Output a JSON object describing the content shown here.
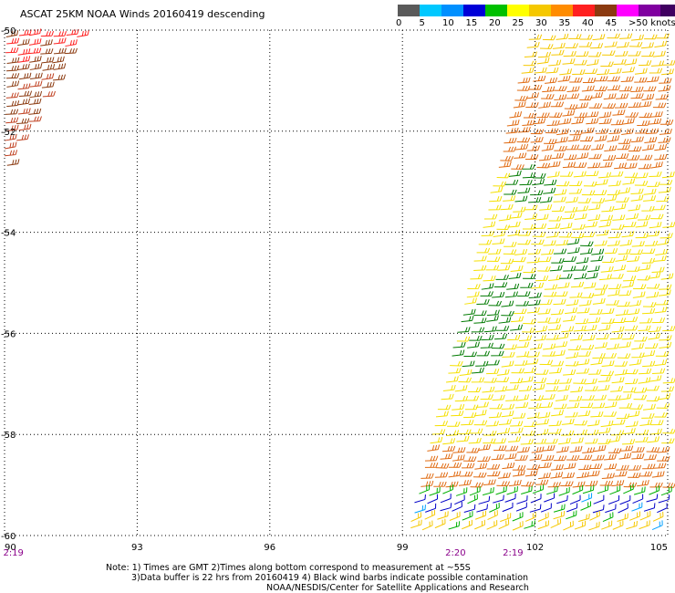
{
  "title": "ASCAT 25KM NOAA Winds 20160419 descending",
  "legend": {
    "colors": [
      "#5a5a5a",
      "#00c8ff",
      "#0090ff",
      "#0000d8",
      "#00c000",
      "#ffff00",
      "#f5c800",
      "#ff8c00",
      "#ff2020",
      "#8b3a10",
      "#ff00ff",
      "#8000a0",
      "#400060"
    ],
    "labels": [
      "0",
      "5",
      "10",
      "15",
      "20",
      "25",
      "30",
      "35",
      "40",
      "45",
      ">50 knots"
    ]
  },
  "map": {
    "lon_range": [
      90,
      105
    ],
    "lat_range": [
      -60,
      -50
    ],
    "lon_ticks": [
      "90",
      "93",
      "96",
      "99",
      "102",
      "105"
    ],
    "lat_ticks": [
      "-50",
      "-52",
      "-54",
      "-56",
      "-58",
      "-60"
    ],
    "grid": "dotted",
    "time_labels": [
      {
        "text": "2:19",
        "lon": 90.2
      },
      {
        "text": "2:20",
        "lon": 100.2
      },
      {
        "text": "2:19",
        "lon": 101.5
      }
    ],
    "swaths": [
      {
        "lon_west_top": 101.8,
        "lon_west_bottom": 99.0,
        "lat_top": -50.0,
        "lat_bottom": -60.0
      },
      {
        "corner": "top-left",
        "lon_east_top": 91.8,
        "lat_bottom": -52.8
      }
    ],
    "wind_bands": [
      {
        "lat_from": -50.0,
        "lat_to": -51.0,
        "color": "#f5c800"
      },
      {
        "lat_from": -51.0,
        "lat_to": -52.8,
        "color": "#e06a10"
      },
      {
        "lat_from": -52.8,
        "lat_to": -58.2,
        "color": "#f5e000"
      },
      {
        "lat_from": -58.2,
        "lat_to": -59.1,
        "color": "#e06a10"
      },
      {
        "lat_from": -59.1,
        "lat_to": -59.3,
        "color": "#00b000"
      },
      {
        "lat_from": -59.3,
        "lat_to": -59.6,
        "color": "#0000c8"
      },
      {
        "lat_from": -59.6,
        "lat_to": -60.0,
        "color": "#f5c800"
      }
    ],
    "green_patches": [
      {
        "lat": -55.2,
        "lon": 101.3
      },
      {
        "lat": -55.8,
        "lon": 100.8
      },
      {
        "lat": -56.4,
        "lon": 100.6
      },
      {
        "lat": -53.1,
        "lon": 101.7
      },
      {
        "lat": -54.6,
        "lon": 102.8
      }
    ]
  },
  "notes": [
    "Note: 1) Times are GMT 2)Times along bottom correspond to measurement at ~55S",
    "3)Data buffer is 22 hrs from 20160419 4) Black wind barbs indicate possible contamination",
    "NOAA/NESDIS/Center for Satellite Applications and Research"
  ]
}
